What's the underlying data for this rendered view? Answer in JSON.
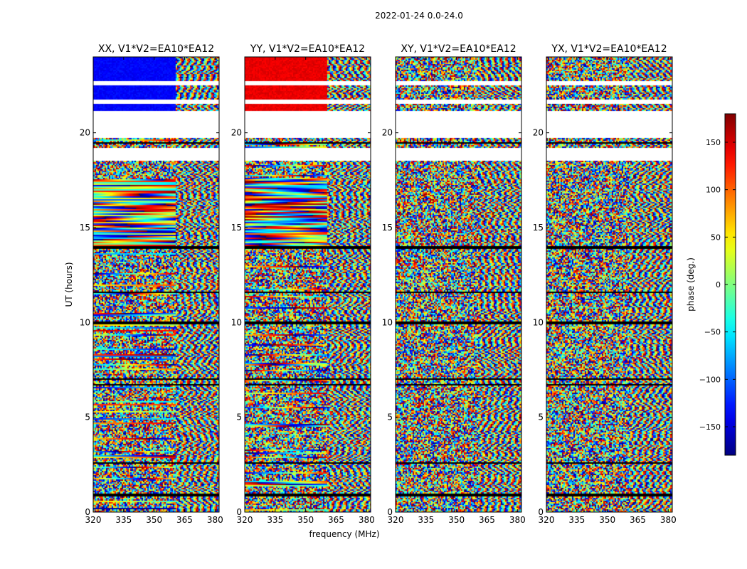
{
  "figure": {
    "suptitle": "2022-01-24 0.0-24.0"
  },
  "chart_data": {
    "type": "heatmap",
    "panels": [
      {
        "title": "XX, V1*V2=EA10*EA12",
        "polarization": "XX"
      },
      {
        "title": "YY, V1*V2=EA10*EA12",
        "polarization": "YY"
      },
      {
        "title": "XY, V1*V2=EA10*EA12",
        "polarization": "XY"
      },
      {
        "title": "YX, V1*V2=EA10*EA12",
        "polarization": "YX"
      }
    ],
    "xlabel": "frequency (MHz)",
    "ylabel": "UT (hours)",
    "xlim": [
      320,
      382
    ],
    "ylim": [
      0,
      24
    ],
    "xticks": [
      320,
      335,
      350,
      365,
      380
    ],
    "yticks": [
      0,
      5,
      10,
      15,
      20
    ],
    "colorbar": {
      "label": "phase (deg.)",
      "range": [
        -180,
        180
      ],
      "ticks": [
        -150,
        -100,
        -50,
        0,
        50,
        100,
        150
      ],
      "tick_labels": [
        "−150",
        "−100",
        "−50",
        "0",
        "50",
        "100",
        "150"
      ],
      "colormap": "jet"
    },
    "frequency_split_mhz": 360.6,
    "no_data_hours": [
      [
        19.2,
        18.55
      ],
      [
        19.8,
        21.2
      ],
      [
        21.55,
        21.75
      ],
      [
        22.55,
        22.75
      ]
    ],
    "black_gap_hours": [
      [
        18.8,
        18.92
      ],
      [
        19.45,
        19.5
      ],
      [
        13.95,
        14.05
      ],
      [
        11.55,
        11.65
      ],
      [
        9.9,
        10.05
      ],
      [
        7.0,
        7.12
      ],
      [
        6.75,
        6.82
      ],
      [
        2.6,
        2.7
      ],
      [
        0.88,
        0.98
      ]
    ],
    "phase_coherent_hours": [
      [
        14.0,
        17.6
      ]
    ]
  }
}
